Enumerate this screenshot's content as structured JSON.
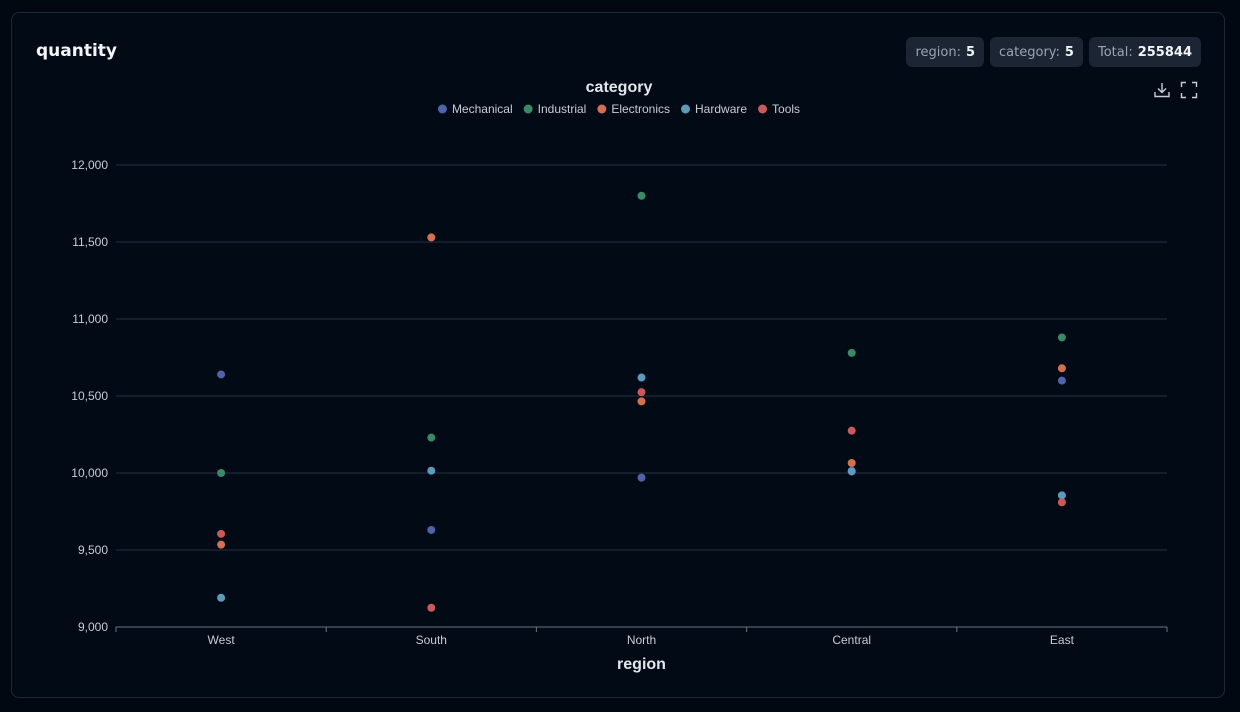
{
  "card": {
    "title": "quantity",
    "badges": [
      {
        "label": "region:",
        "value": "5"
      },
      {
        "label": "category:",
        "value": "5"
      },
      {
        "label": "Total:",
        "value": "255844"
      }
    ]
  },
  "toolbar": {
    "download_icon": "download-icon",
    "fullscreen_icon": "fullscreen-icon"
  },
  "chart_data": {
    "type": "scatter",
    "legend_title": "category",
    "legend_position": "top-center",
    "xlabel": "region",
    "ylabel": "",
    "categories": [
      "West",
      "South",
      "North",
      "Central",
      "East"
    ],
    "ylim": [
      9000,
      12000
    ],
    "yticks": [
      9000,
      9500,
      10000,
      10500,
      11000,
      11500,
      12000
    ],
    "ytick_labels": [
      "9,000",
      "9,500",
      "10,000",
      "10,500",
      "11,000",
      "11,500",
      "12,000"
    ],
    "grid": true,
    "series": [
      {
        "name": "Mechanical",
        "color": "#4f63a8",
        "values": [
          10640,
          9630,
          9970,
          10015,
          10600
        ]
      },
      {
        "name": "Industrial",
        "color": "#3a8a67",
        "values": [
          10000,
          10230,
          11800,
          10780,
          10880
        ]
      },
      {
        "name": "Electronics",
        "color": "#d2704f",
        "values": [
          9535,
          11530,
          10465,
          10065,
          10680
        ]
      },
      {
        "name": "Hardware",
        "color": "#5c9bbc",
        "values": [
          9190,
          10015,
          10620,
          10010,
          9855
        ]
      },
      {
        "name": "Tools",
        "color": "#c95a5a",
        "values": [
          9605,
          9125,
          10525,
          10275,
          9810
        ]
      }
    ]
  }
}
